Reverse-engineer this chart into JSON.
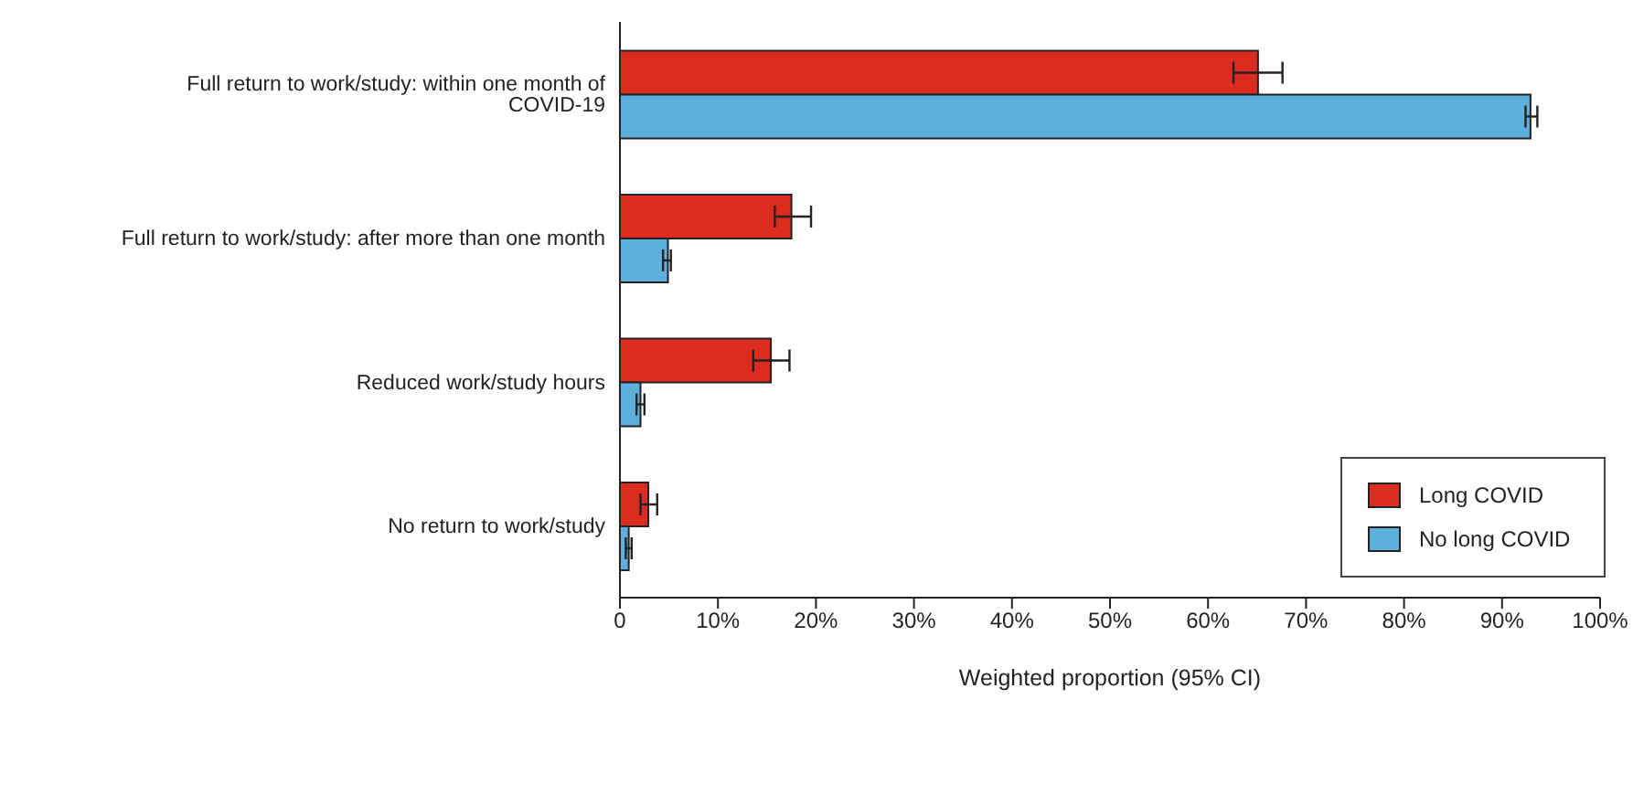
{
  "chart_data": {
    "type": "bar",
    "orientation": "horizontal",
    "xlabel": "Weighted proportion (95% CI)",
    "categories": [
      "Full return to work/study: within one month of COVID-19",
      "Full return to work/study: after more than one month",
      "Reduced work/study hours",
      "No return to work/study"
    ],
    "series": [
      {
        "name": "Long COVID",
        "color": "#dc2b1f",
        "values": [
          65.1,
          17.5,
          15.4,
          2.9
        ],
        "errors": [
          [
            62.6,
            67.6
          ],
          [
            15.8,
            19.5
          ],
          [
            13.6,
            17.3
          ],
          [
            2.1,
            3.8
          ]
        ]
      },
      {
        "name": "No long COVID",
        "color": "#5eafdb",
        "values": [
          92.9,
          4.9,
          2.1,
          0.9
        ],
        "errors": [
          [
            92.4,
            93.6
          ],
          [
            4.4,
            5.2
          ],
          [
            1.7,
            2.5
          ],
          [
            0.6,
            1.2
          ]
        ]
      }
    ],
    "xlim": [
      0,
      100
    ],
    "xticks": [
      {
        "value": 0,
        "label": "0"
      },
      {
        "value": 10,
        "label": "10%"
      },
      {
        "value": 20,
        "label": "20%"
      },
      {
        "value": 30,
        "label": "30%"
      },
      {
        "value": 40,
        "label": "40%"
      },
      {
        "value": 50,
        "label": "50%"
      },
      {
        "value": 60,
        "label": "60%"
      },
      {
        "value": 70,
        "label": "70%"
      },
      {
        "value": 80,
        "label": "80%"
      },
      {
        "value": 90,
        "label": "90%"
      },
      {
        "value": 100,
        "label": "100%"
      }
    ],
    "grid": false,
    "legend": "bottom right"
  }
}
